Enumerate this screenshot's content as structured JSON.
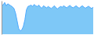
{
  "chart_data": {
    "type": "area",
    "values": [
      85,
      82,
      90,
      80,
      86,
      83,
      80,
      77,
      72,
      58,
      35,
      12,
      5,
      8,
      18,
      38,
      68,
      78,
      80,
      82,
      78,
      84,
      80,
      78,
      82,
      76,
      73,
      80,
      77,
      74,
      78,
      75,
      72,
      76,
      80,
      74,
      71,
      75,
      78,
      76,
      80,
      77,
      74,
      78,
      81,
      77,
      74,
      77,
      80,
      76,
      73,
      77,
      80,
      76,
      73,
      76,
      79,
      75,
      72,
      76
    ],
    "colors": [
      "#7ec8f7",
      "#4daaff"
    ],
    "ylim": [
      -5,
      95
    ],
    "tick_labels": false
  }
}
